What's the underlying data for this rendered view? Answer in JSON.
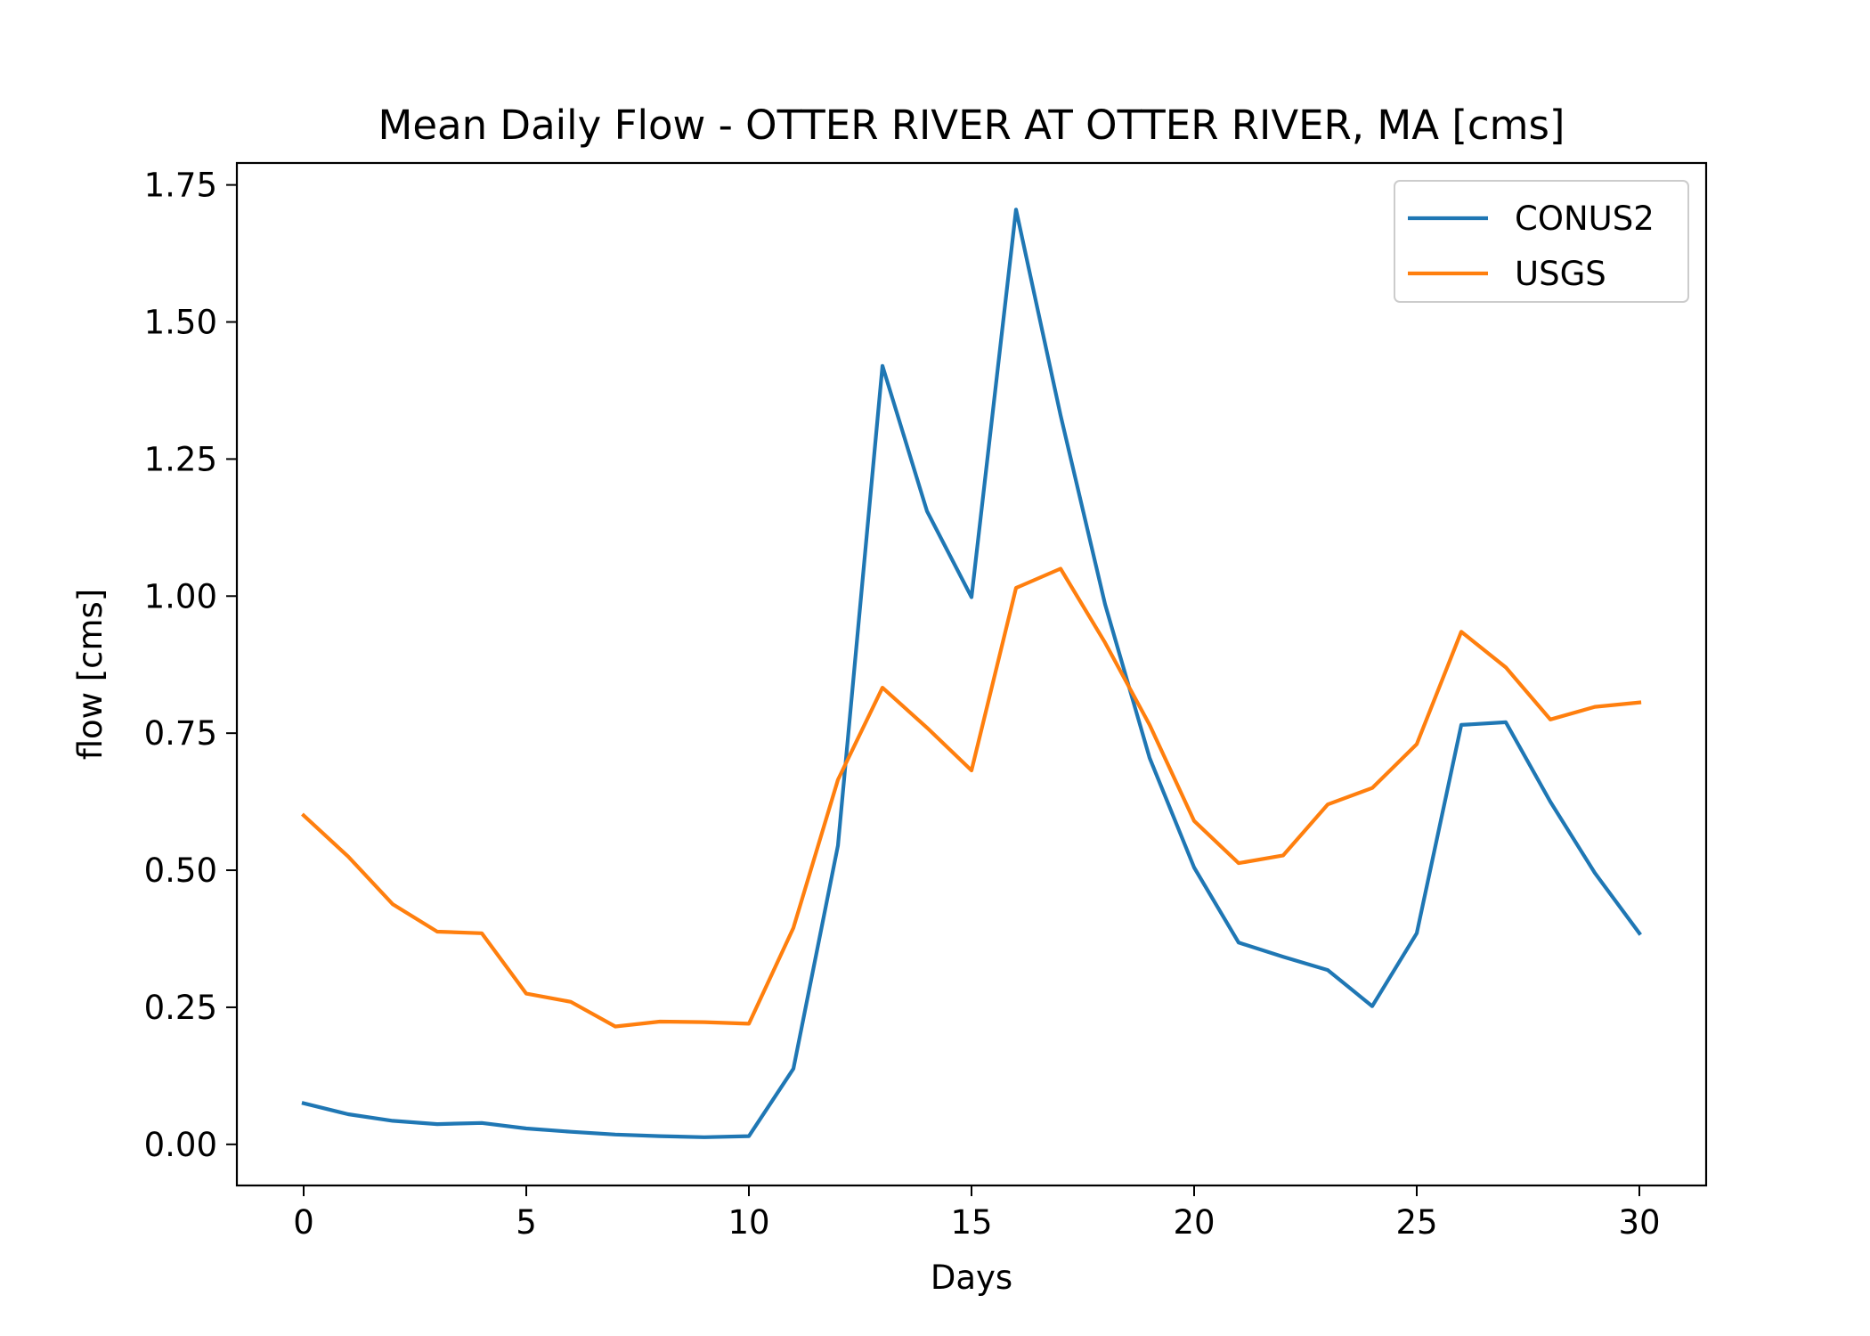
{
  "chart_data": {
    "type": "line",
    "title": "Mean Daily Flow - OTTER RIVER AT OTTER RIVER, MA [cms]",
    "xlabel": "Days",
    "ylabel": "flow [cms]",
    "xlim": [
      -1.5,
      31.5
    ],
    "ylim": [
      -0.075,
      1.79
    ],
    "x_ticks": [
      0,
      5,
      10,
      15,
      20,
      25,
      30
    ],
    "x_tick_labels": [
      "0",
      "5",
      "10",
      "15",
      "20",
      "25",
      "30"
    ],
    "y_ticks": [
      0,
      0.25,
      0.5,
      0.75,
      1.0,
      1.25,
      1.5,
      1.75
    ],
    "y_tick_labels": [
      "0.00",
      "0.25",
      "0.50",
      "0.75",
      "1.00",
      "1.25",
      "1.50",
      "1.75"
    ],
    "grid": false,
    "legend_position": "top-right",
    "x": [
      0,
      1,
      2,
      3,
      4,
      5,
      6,
      7,
      8,
      9,
      10,
      11,
      12,
      13,
      14,
      15,
      16,
      17,
      18,
      19,
      20,
      21,
      22,
      23,
      24,
      25,
      26,
      27,
      28,
      29,
      30
    ],
    "series": [
      {
        "name": "CONUS2",
        "color": "#1f77b4",
        "values": [
          0.075,
          0.055,
          0.043,
          0.037,
          0.039,
          0.029,
          0.023,
          0.018,
          0.015,
          0.013,
          0.015,
          0.138,
          0.545,
          1.42,
          1.155,
          0.998,
          1.705,
          1.33,
          0.985,
          0.705,
          0.505,
          0.368,
          0.342,
          0.318,
          0.252,
          0.385,
          0.765,
          0.77,
          0.625,
          0.495,
          0.385
        ]
      },
      {
        "name": "USGS",
        "color": "#ff7f0e",
        "values": [
          0.6,
          0.525,
          0.438,
          0.388,
          0.385,
          0.275,
          0.26,
          0.215,
          0.224,
          0.223,
          0.22,
          0.395,
          0.665,
          0.833,
          0.76,
          0.682,
          1.015,
          1.05,
          0.915,
          0.765,
          0.59,
          0.513,
          0.527,
          0.62,
          0.65,
          0.73,
          0.935,
          0.87,
          0.775,
          0.798,
          0.806
        ]
      }
    ]
  }
}
